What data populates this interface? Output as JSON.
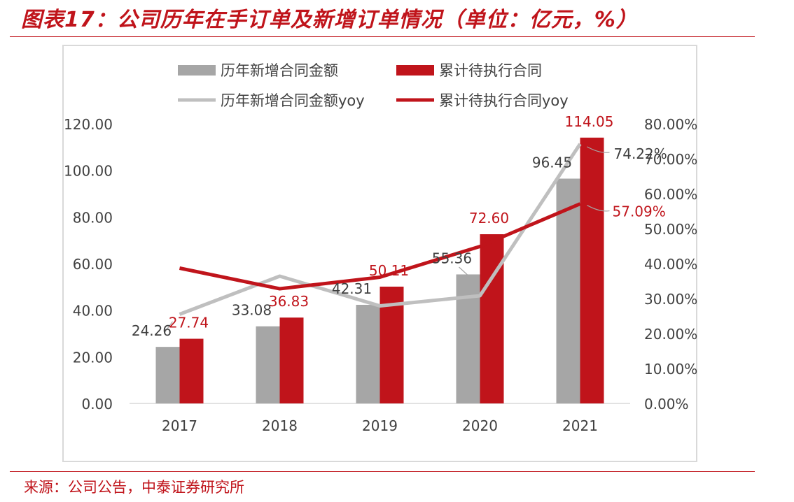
{
  "title": "图表17：公司历年在手订单及新增订单情况（单位：亿元，%）",
  "source": "来源：公司公告，中泰证券研究所",
  "colors": {
    "grey_bar": "#a6a6a6",
    "red_bar": "#c0141b",
    "grey_line": "#bfbfbf",
    "red_line": "#c0141b",
    "title": "#c0141b"
  },
  "chart_data": {
    "type": "bar",
    "categories": [
      "2017",
      "2018",
      "2019",
      "2020",
      "2021"
    ],
    "series": [
      {
        "name": "历年新增合同金额",
        "type": "bar",
        "axis": "left",
        "values": [
          24.26,
          33.08,
          42.31,
          55.36,
          96.45
        ],
        "labels": [
          "24.26",
          "33.08",
          "42.31",
          "55.36",
          "96.45"
        ]
      },
      {
        "name": "累计待执行合同",
        "type": "bar",
        "axis": "left",
        "values": [
          27.74,
          36.83,
          50.11,
          72.6,
          114.05
        ],
        "labels": [
          "27.74",
          "36.83",
          "50.11",
          "72.60",
          "114.05"
        ]
      },
      {
        "name": "历年新增合同金额yoy",
        "type": "line",
        "axis": "right",
        "values": [
          25.5,
          36.4,
          27.9,
          30.8,
          74.22
        ],
        "labels": [
          "",
          "",
          "",
          "",
          "74.22%"
        ]
      },
      {
        "name": "累计待执行合同yoy",
        "type": "line",
        "axis": "right",
        "values": [
          38.7,
          32.8,
          36.1,
          44.9,
          57.09
        ],
        "labels": [
          "",
          "",
          "",
          "",
          "57.09%"
        ]
      }
    ],
    "y_left": {
      "min": 0,
      "max": 120,
      "step": 20,
      "tick_labels": [
        "0.00",
        "20.00",
        "40.00",
        "60.00",
        "80.00",
        "100.00",
        "120.00"
      ]
    },
    "y_right": {
      "min": 0,
      "max": 80,
      "step": 10,
      "tick_labels": [
        "0.00%",
        "10.00%",
        "20.00%",
        "30.00%",
        "40.00%",
        "50.00%",
        "60.00%",
        "70.00%",
        "80.00%"
      ]
    },
    "legend_position": "top",
    "grid": false
  }
}
